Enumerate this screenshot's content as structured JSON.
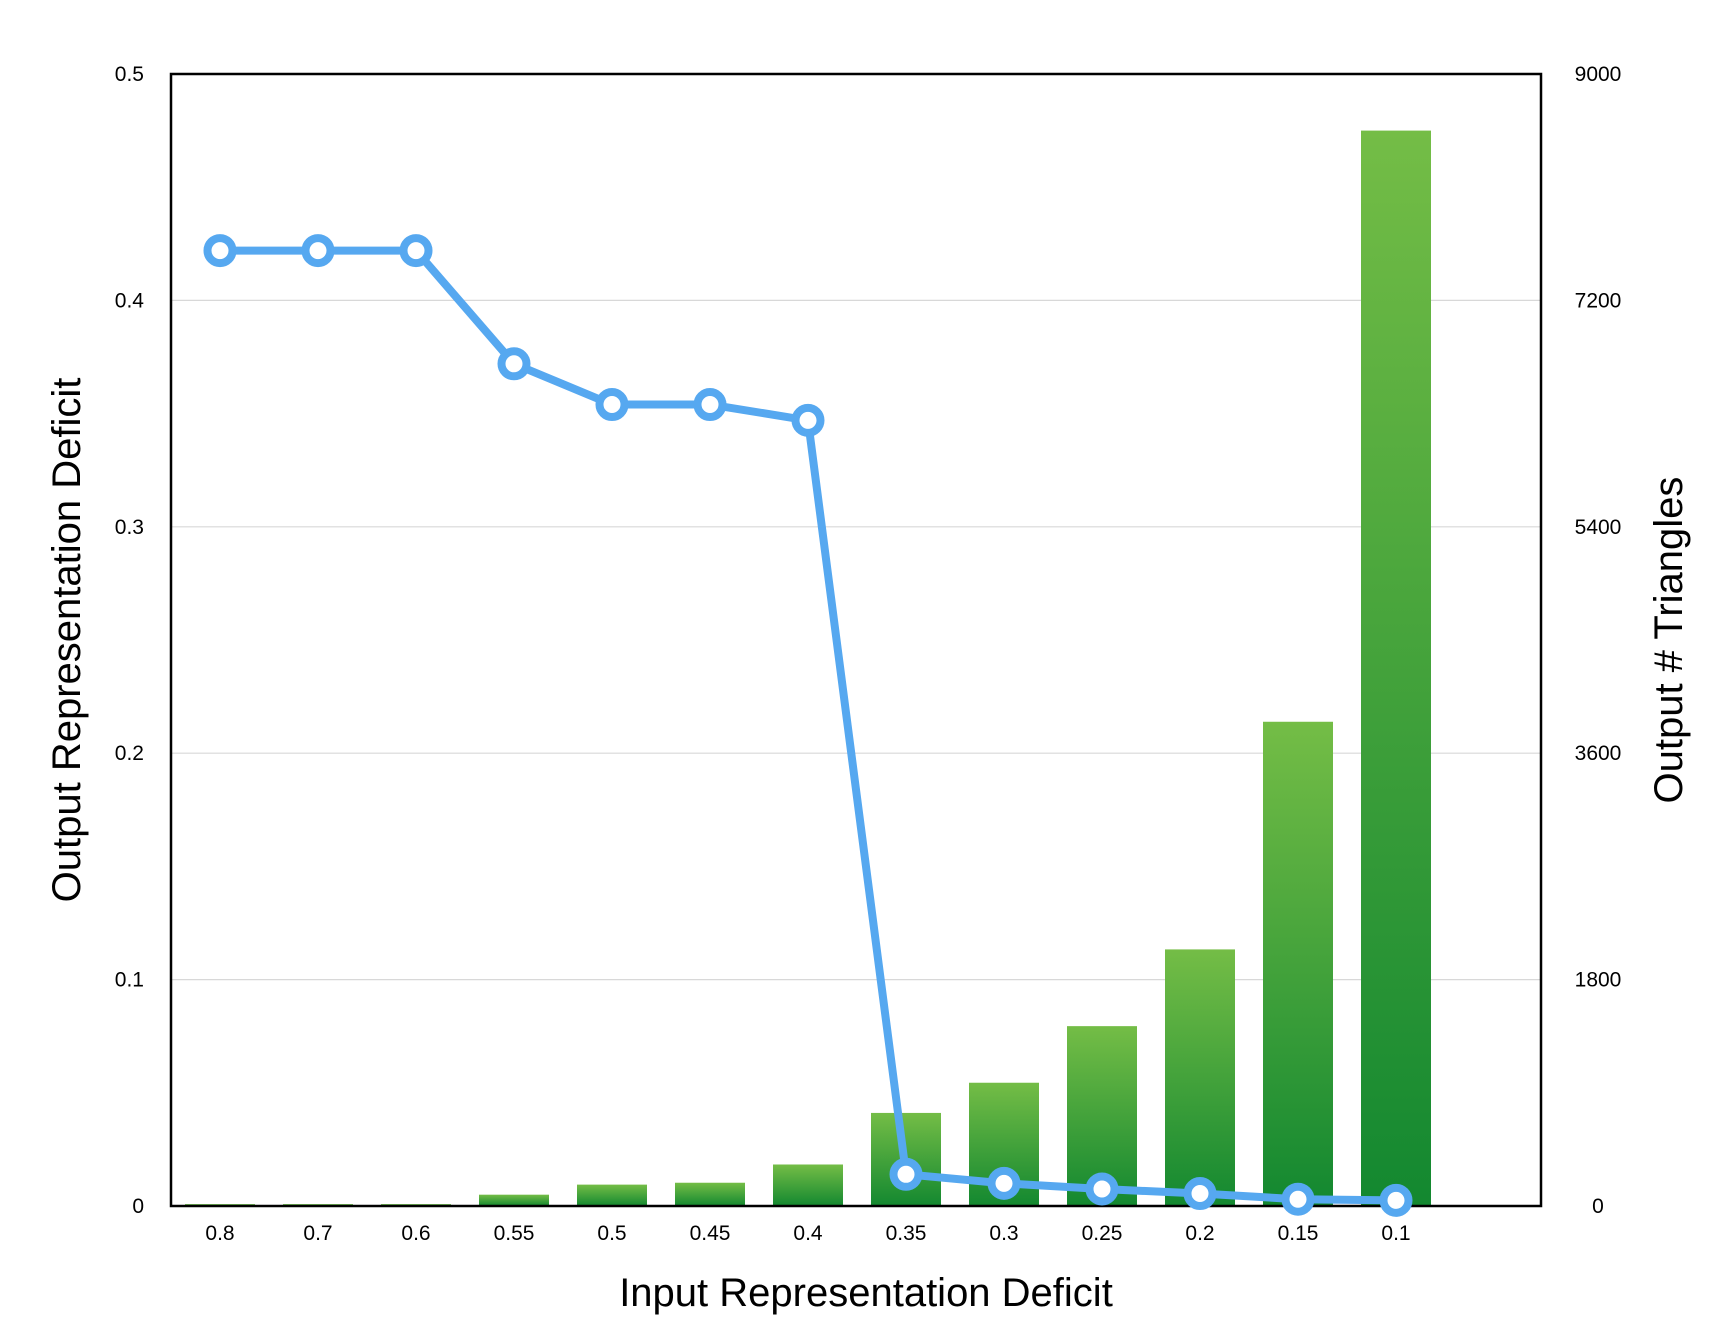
{
  "chart_data": {
    "type": "bar+line",
    "xlabel": "Input Representation Deficit",
    "ylabel_left": "Output Representation Deficit",
    "ylabel_right": "Output # Triangles",
    "categories": [
      "0.8",
      "0.7",
      "0.6",
      "0.55",
      "0.5",
      "0.45",
      "0.4",
      "0.35",
      "0.3",
      "0.25",
      "0.2",
      "0.15",
      "0.1"
    ],
    "left_axis": {
      "min": 0,
      "max": 0.5,
      "ticks": [
        "0",
        "0.1",
        "0.2",
        "0.3",
        "0.4",
        "0.5"
      ]
    },
    "right_axis": {
      "min": 0,
      "max": 9000,
      "ticks": [
        "0",
        "1800",
        "3600",
        "5400",
        "7200",
        "9000"
      ]
    },
    "grid": true,
    "series": [
      {
        "type": "bar",
        "axis": "right",
        "values": [
          15,
          15,
          15,
          90,
          170,
          185,
          330,
          740,
          980,
          1430,
          2040,
          3850,
          8550
        ]
      },
      {
        "type": "line",
        "axis": "left",
        "values": [
          0.422,
          0.422,
          0.422,
          0.372,
          0.354,
          0.354,
          0.347,
          0.014,
          0.01,
          0.0075,
          0.0055,
          0.003,
          0.0025
        ]
      }
    ],
    "colors": {
      "bar_top": "#74bd46",
      "bar_bottom": "#138830",
      "line": "#56a8f0",
      "grid": "#d8d8d8"
    }
  }
}
